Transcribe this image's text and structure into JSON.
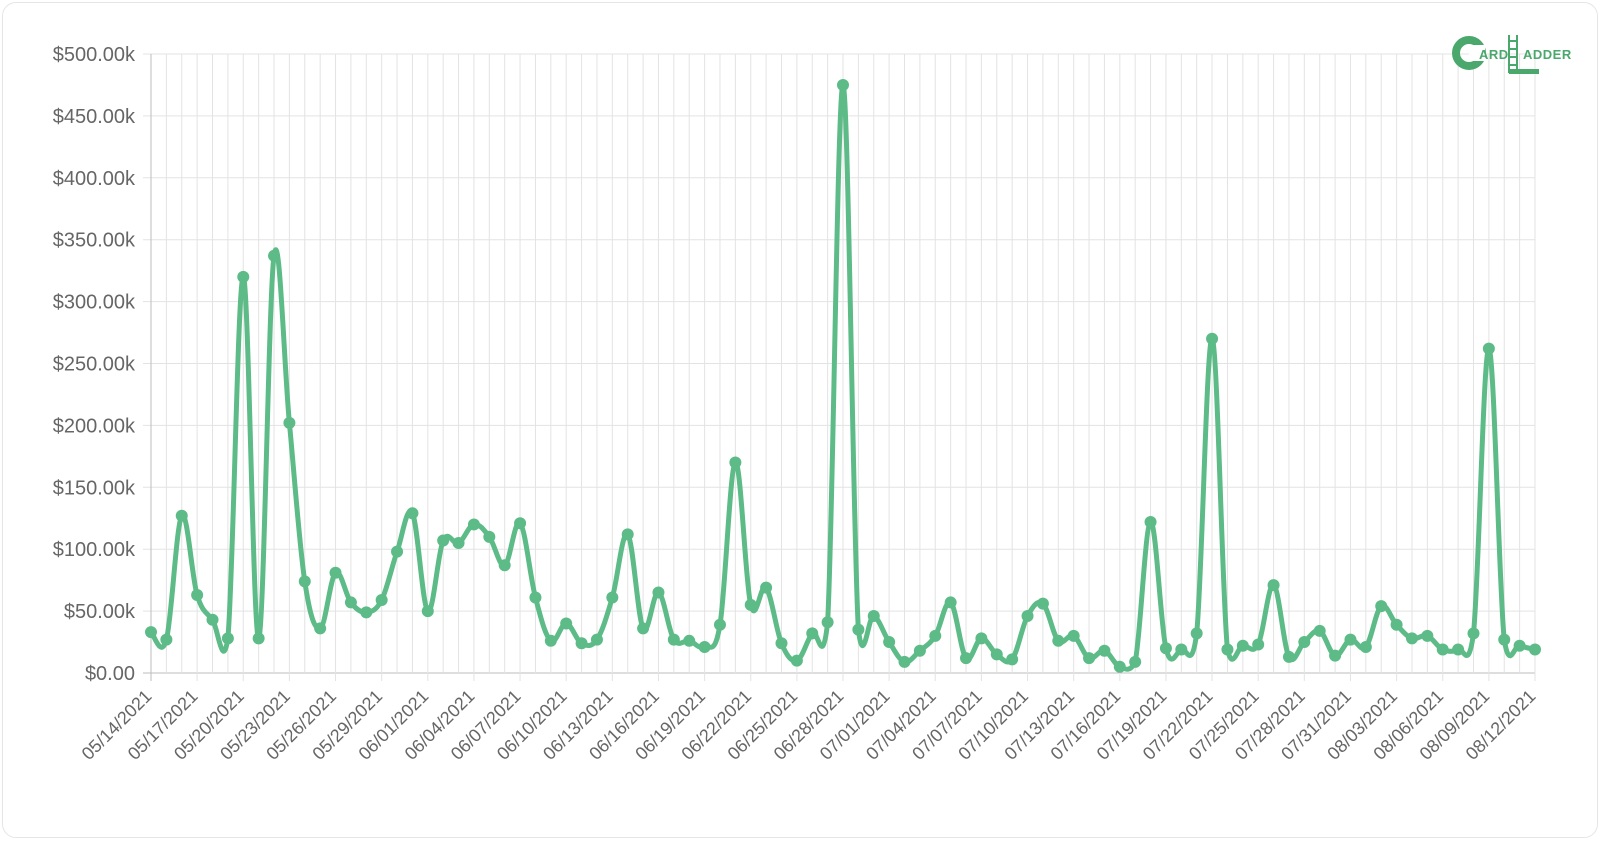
{
  "logo": {
    "name": "CardLadder",
    "left_text": "ARD",
    "right_text": "ADDER",
    "color": "#4aa86d"
  },
  "chart_data": {
    "type": "line",
    "color": "#5dbb87",
    "grid": true,
    "legend": "none",
    "ylim": [
      0,
      500000
    ],
    "y_ticks": [
      "$0.00",
      "$50.00k",
      "$100.00k",
      "$150.00k",
      "$200.00k",
      "$250.00k",
      "$300.00k",
      "$350.00k",
      "$400.00k",
      "$450.00k",
      "$500.00k"
    ],
    "x_ticks": [
      "05/14/2021",
      "05/17/2021",
      "05/20/2021",
      "05/23/2021",
      "05/26/2021",
      "05/29/2021",
      "06/01/2021",
      "06/04/2021",
      "06/07/2021",
      "06/10/2021",
      "06/13/2021",
      "06/16/2021",
      "06/19/2021",
      "06/22/2021",
      "06/25/2021",
      "06/28/2021",
      "07/01/2021",
      "07/04/2021",
      "07/07/2021",
      "07/10/2021",
      "07/13/2021",
      "07/16/2021",
      "07/19/2021",
      "07/22/2021",
      "07/25/2021",
      "07/28/2021",
      "07/31/2021",
      "08/03/2021",
      "08/06/2021",
      "08/09/2021",
      "08/12/2021"
    ],
    "x": [
      "05/14/2021",
      "05/15/2021",
      "05/16/2021",
      "05/17/2021",
      "05/18/2021",
      "05/19/2021",
      "05/20/2021",
      "05/21/2021",
      "05/22/2021",
      "05/23/2021",
      "05/24/2021",
      "05/25/2021",
      "05/26/2021",
      "05/27/2021",
      "05/28/2021",
      "05/29/2021",
      "05/30/2021",
      "05/31/2021",
      "06/01/2021",
      "06/02/2021",
      "06/03/2021",
      "06/04/2021",
      "06/05/2021",
      "06/06/2021",
      "06/07/2021",
      "06/08/2021",
      "06/09/2021",
      "06/10/2021",
      "06/11/2021",
      "06/12/2021",
      "06/13/2021",
      "06/14/2021",
      "06/15/2021",
      "06/16/2021",
      "06/17/2021",
      "06/18/2021",
      "06/19/2021",
      "06/20/2021",
      "06/21/2021",
      "06/22/2021",
      "06/23/2021",
      "06/24/2021",
      "06/25/2021",
      "06/26/2021",
      "06/27/2021",
      "06/28/2021",
      "06/29/2021",
      "06/30/2021",
      "07/01/2021",
      "07/02/2021",
      "07/03/2021",
      "07/04/2021",
      "07/05/2021",
      "07/06/2021",
      "07/07/2021",
      "07/08/2021",
      "07/09/2021",
      "07/10/2021",
      "07/11/2021",
      "07/12/2021",
      "07/13/2021",
      "07/14/2021",
      "07/15/2021",
      "07/16/2021",
      "07/17/2021",
      "07/18/2021",
      "07/19/2021",
      "07/20/2021",
      "07/21/2021",
      "07/22/2021",
      "07/23/2021",
      "07/24/2021",
      "07/25/2021",
      "07/26/2021",
      "07/27/2021",
      "07/28/2021",
      "07/29/2021",
      "07/30/2021",
      "07/31/2021",
      "08/01/2021",
      "08/02/2021",
      "08/03/2021",
      "08/04/2021",
      "08/05/2021",
      "08/06/2021",
      "08/07/2021",
      "08/08/2021",
      "08/09/2021",
      "08/10/2021",
      "08/11/2021",
      "08/12/2021"
    ],
    "values": [
      33000,
      27000,
      127000,
      63000,
      43000,
      28000,
      320000,
      28000,
      337000,
      202000,
      74000,
      36000,
      81000,
      57000,
      49000,
      59000,
      98000,
      129000,
      50000,
      107000,
      105000,
      120000,
      110000,
      87000,
      121000,
      61000,
      26000,
      40000,
      24000,
      27000,
      61000,
      112000,
      36000,
      65000,
      27000,
      26000,
      21000,
      39000,
      170000,
      55000,
      69000,
      24000,
      10000,
      32000,
      41000,
      475000,
      35000,
      46000,
      25000,
      9000,
      18000,
      30000,
      57000,
      12000,
      28000,
      15000,
      11000,
      46000,
      56000,
      26000,
      30000,
      12000,
      18000,
      5000,
      9000,
      122000,
      20000,
      19000,
      32000,
      270000,
      19000,
      22000,
      23000,
      71000,
      13000,
      25000,
      34000,
      14000,
      27000,
      21000,
      54000,
      39000,
      28000,
      30000,
      19000,
      19000,
      32000,
      262000,
      27000,
      22000,
      19000
    ]
  }
}
